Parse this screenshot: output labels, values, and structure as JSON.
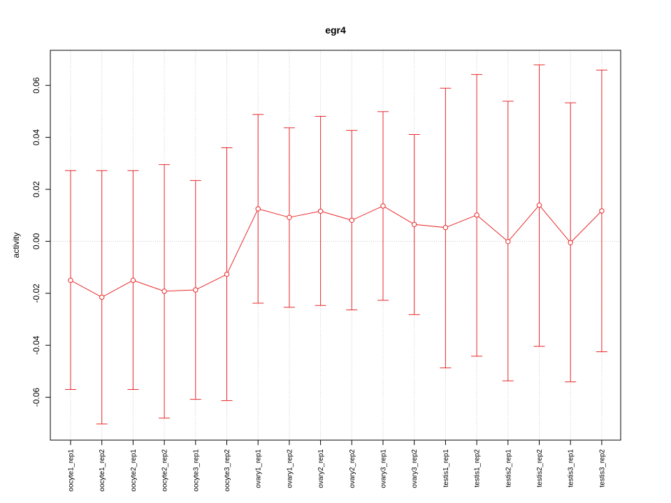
{
  "chart_data": {
    "type": "line",
    "title": "egr4",
    "xlabel": "",
    "ylabel": "activity",
    "categories": [
      "oocyte1_rep1",
      "oocyte1_rep2",
      "oocyte2_rep1",
      "oocyte2_rep2",
      "oocyte3_rep1",
      "oocyte3_rep2",
      "ovary1_rep1",
      "ovary1_rep2",
      "ovary2_rep1",
      "ovary2_rep2",
      "ovary3_rep1",
      "ovary3_rep2",
      "testis1_rep1",
      "testis1_rep2",
      "testis2_rep1",
      "testis2_rep2",
      "testis3_rep1",
      "testis3_rep2"
    ],
    "series": [
      {
        "values": [
          -0.015,
          -0.0215,
          -0.015,
          -0.0192,
          -0.0187,
          -0.0127,
          0.0125,
          0.0092,
          0.0116,
          0.0081,
          0.0136,
          0.0065,
          0.0053,
          0.0101,
          -0.0001,
          0.0139,
          -0.0005,
          0.0117
        ],
        "upper": [
          0.0272,
          0.0272,
          0.0272,
          0.0295,
          0.0234,
          0.036,
          0.0488,
          0.0437,
          0.0481,
          0.0427,
          0.0499,
          0.0411,
          0.0589,
          0.0642,
          0.0539,
          0.0679,
          0.0533,
          0.0659
        ],
        "lower": [
          -0.057,
          -0.0703,
          -0.057,
          -0.068,
          -0.0608,
          -0.0613,
          -0.0238,
          -0.0254,
          -0.0247,
          -0.0264,
          -0.0227,
          -0.0282,
          -0.0487,
          -0.0442,
          -0.0537,
          -0.0404,
          -0.0541,
          -0.0425
        ]
      }
    ],
    "y_ticks": [
      -0.06,
      -0.04,
      -0.02,
      0.0,
      0.02,
      0.04,
      0.06
    ],
    "y_tick_labels": [
      "-0.06",
      "-0.04",
      "-0.02",
      "0.00",
      "0.02",
      "0.04",
      "0.06"
    ],
    "ylim": [
      -0.0765,
      0.0735
    ],
    "grid": true,
    "legend": "none",
    "colors": {
      "series": "#e8282b",
      "grid": "#c8c8c8",
      "axis": "#000000"
    }
  }
}
